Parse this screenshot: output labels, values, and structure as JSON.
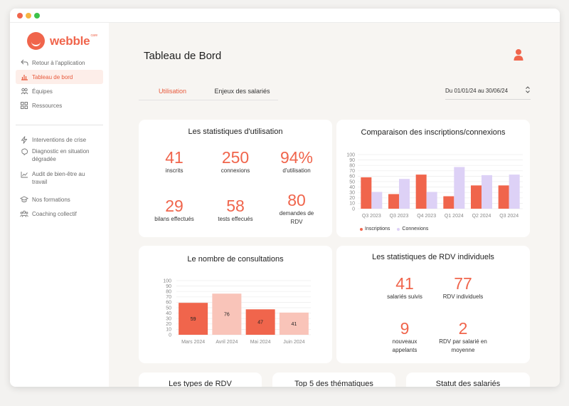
{
  "app": {
    "name": "webble",
    "name_sup": "care",
    "traffic_lights": [
      "#f0654c",
      "#f5b542",
      "#3cc24a"
    ]
  },
  "sidebar": {
    "items": [
      {
        "label": "Retour à l'application",
        "icon": "back-arrow-icon"
      },
      {
        "label": "Tableau de bord",
        "icon": "bar-chart-icon",
        "active": true
      },
      {
        "label": "Équipes",
        "icon": "team-icon"
      },
      {
        "label": "Ressources",
        "icon": "grid-icon"
      },
      {
        "label": "Interventions de crise",
        "icon": "lightning-icon"
      },
      {
        "label": "Diagnostic en situation dégradée",
        "icon": "brain-icon"
      },
      {
        "label": "Audit de bien-être au travail",
        "icon": "line-chart-icon"
      },
      {
        "label": "Nos formations",
        "icon": "graduation-cap-icon"
      },
      {
        "label": "Coaching collectif",
        "icon": "group-icon"
      }
    ]
  },
  "header": {
    "title": "Tableau de Bord",
    "user_icon": "user-icon"
  },
  "tabs": [
    {
      "label": "Utilisation",
      "active": true
    },
    {
      "label": "Enjeux des salariés",
      "active": false
    }
  ],
  "date_range": {
    "label": "Du 01/01/24 au 30/06/24",
    "icon": "up-down-chevron-icon"
  },
  "usage_stats": {
    "title": "Les statistiques d'utilisation",
    "items": [
      {
        "value": "41",
        "label": "inscrits"
      },
      {
        "value": "250",
        "label": "connexions"
      },
      {
        "value": "94%",
        "label": "d'utilisation"
      },
      {
        "value": "29",
        "label": "bilans effectués"
      },
      {
        "value": "58",
        "label": "tests effecués"
      },
      {
        "value": "80",
        "label": "demandes de RDV"
      }
    ]
  },
  "colors": {
    "accent": "#f0654c",
    "inscriptions": "#f0654c",
    "connexions": "#ddd1f6",
    "bar_light": "#f9c4b9",
    "text": "#1f1f1f"
  },
  "comparison_chart": {
    "title": "Comparaison des inscriptions/connexions",
    "chart_data": {
      "type": "bar",
      "categories": [
        "Q3 2023",
        "Q3 2023",
        "Q4 2023",
        "Q1 2024",
        "Q2 2024",
        "Q3 2024"
      ],
      "series": [
        {
          "name": "Inscriptions",
          "values": [
            58,
            27,
            63,
            23,
            43,
            43
          ]
        },
        {
          "name": "Connexions",
          "values": [
            31,
            55,
            31,
            77,
            62,
            63
          ]
        }
      ],
      "y_ticks": [
        "0",
        "10",
        "20",
        "30",
        "40",
        "50",
        "60",
        "70",
        "80",
        "90",
        "100"
      ],
      "ylim": [
        0,
        100
      ],
      "grid": true,
      "legend": "bottom-left"
    }
  },
  "consultations_chart": {
    "title": "Le nombre de consultations",
    "chart_data": {
      "type": "bar",
      "categories": [
        "Mars 2024",
        "Avril 2024",
        "Mai 2024",
        "Juin 2024"
      ],
      "values": [
        59,
        76,
        47,
        41
      ],
      "data_labels": [
        "59",
        "76",
        "47",
        "41"
      ],
      "y_ticks": [
        "0",
        "10",
        "20",
        "30",
        "40",
        "50",
        "60",
        "70",
        "80",
        "90",
        "100"
      ],
      "ylim": [
        0,
        100
      ],
      "grid": true
    }
  },
  "rdv_stats": {
    "title": "Les statistiques de RDV individuels",
    "items": [
      {
        "value": "41",
        "label": "salariés suivis"
      },
      {
        "value": "77",
        "label": "RDV individuels"
      },
      {
        "value": "9",
        "label": "nouveaux appelants"
      },
      {
        "value": "2",
        "label": "RDV par salarié en moyenne"
      }
    ]
  },
  "bottom_cards": [
    {
      "title": "Les types de RDV"
    },
    {
      "title": "Top 5 des thématiques"
    },
    {
      "title": "Statut des salariés"
    }
  ]
}
